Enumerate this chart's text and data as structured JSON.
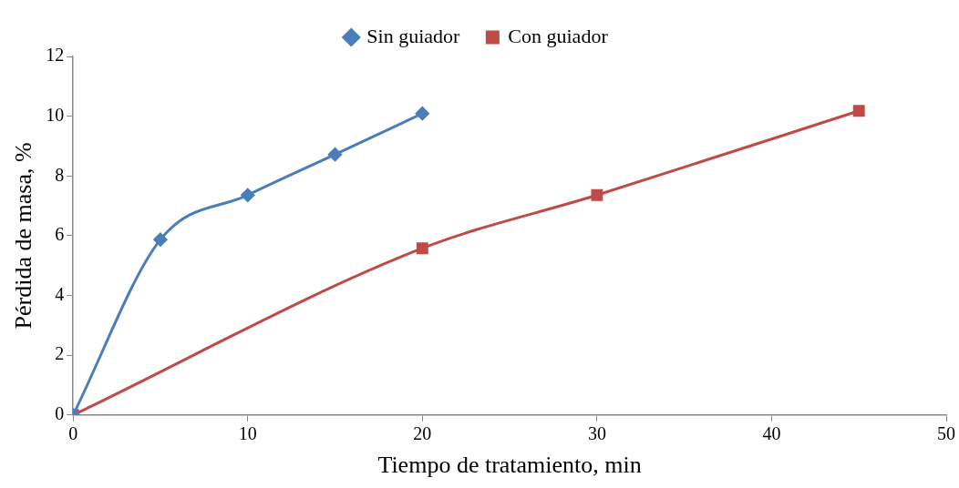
{
  "chart_data": {
    "type": "line",
    "xlabel": "Tiempo de tratamiento, min",
    "ylabel": "Pérdida de masa, %",
    "xlim": [
      0,
      50
    ],
    "xticks": [
      0,
      10,
      20,
      30,
      40,
      50
    ],
    "ylim": [
      0,
      12
    ],
    "yticks": [
      0,
      2,
      4,
      6,
      8,
      10,
      12
    ],
    "grid": false,
    "legend": "top",
    "series": [
      {
        "name": "Sin guiador",
        "color": "#4a7ebb",
        "marker": "diamond",
        "x": [
          0,
          5,
          10,
          15,
          20
        ],
        "values": [
          0,
          5.87,
          7.36,
          8.72,
          10.09
        ]
      },
      {
        "name": "Con guiador",
        "color": "#be4b48",
        "marker": "square",
        "x": [
          0,
          20,
          30,
          45
        ],
        "values": [
          0,
          5.58,
          7.36,
          10.18
        ]
      }
    ]
  }
}
